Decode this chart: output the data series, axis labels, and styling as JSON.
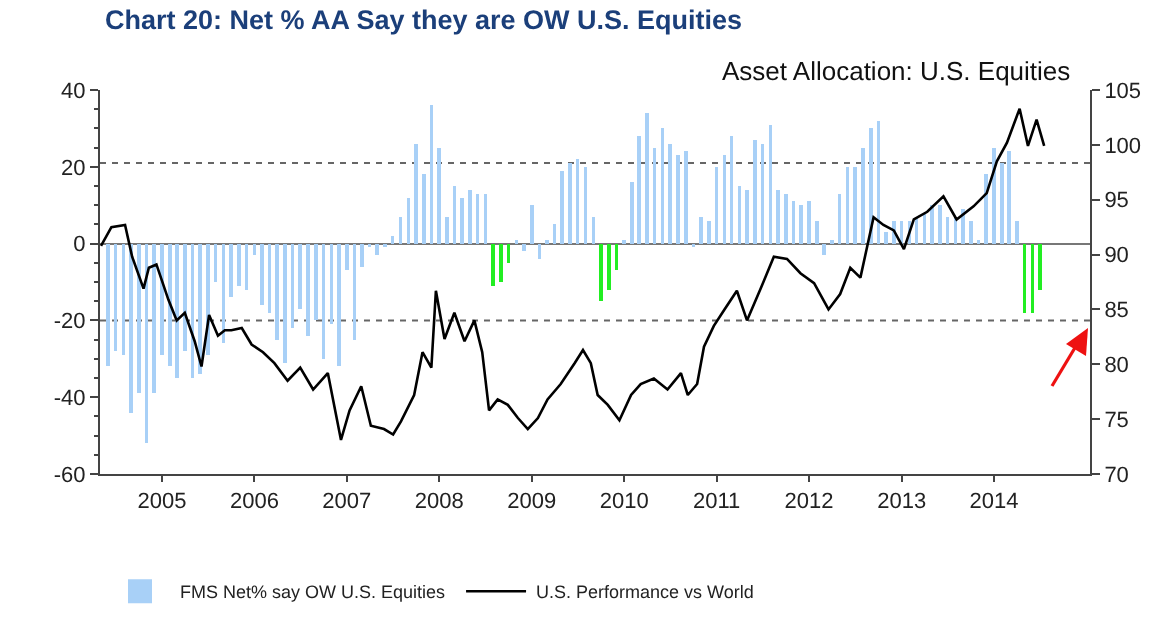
{
  "chart_data": {
    "type": "bar",
    "title": "Chart 20: Net % AA Say they are OW U.S. Equities",
    "subtitle": "Asset Allocation: U.S. Equities",
    "x": [
      "2004-06",
      "2004-07",
      "2004-08",
      "2004-09",
      "2004-10",
      "2004-11",
      "2004-12",
      "2005-01",
      "2005-02",
      "2005-03",
      "2005-04",
      "2005-05",
      "2005-06",
      "2005-07",
      "2005-08",
      "2005-09",
      "2005-10",
      "2005-11",
      "2005-12",
      "2006-01",
      "2006-02",
      "2006-03",
      "2006-04",
      "2006-05",
      "2006-06",
      "2006-07",
      "2006-08",
      "2006-09",
      "2006-10",
      "2006-11",
      "2006-12",
      "2007-01",
      "2007-02",
      "2007-03",
      "2007-04",
      "2007-05",
      "2007-06",
      "2007-07",
      "2007-08",
      "2007-09",
      "2007-10",
      "2007-11",
      "2007-12",
      "2008-01",
      "2008-02",
      "2008-03",
      "2008-04",
      "2008-05",
      "2008-06",
      "2008-07",
      "2008-08",
      "2008-09",
      "2008-10",
      "2008-11",
      "2008-12",
      "2009-01",
      "2009-02",
      "2009-03",
      "2009-04",
      "2009-05",
      "2009-06",
      "2009-07",
      "2009-08",
      "2009-09",
      "2009-10",
      "2009-11",
      "2009-12",
      "2010-01",
      "2010-02",
      "2010-03",
      "2010-04",
      "2010-05",
      "2010-06",
      "2010-07",
      "2010-08",
      "2010-09",
      "2010-10",
      "2010-11",
      "2010-12",
      "2011-01",
      "2011-02",
      "2011-03",
      "2011-04",
      "2011-05",
      "2011-06",
      "2011-07",
      "2011-08",
      "2011-09",
      "2011-10",
      "2011-11",
      "2011-12",
      "2012-01",
      "2012-02",
      "2012-03",
      "2012-04",
      "2012-05",
      "2012-06",
      "2012-07",
      "2012-08",
      "2012-09",
      "2012-10",
      "2012-11",
      "2012-12",
      "2013-01",
      "2013-02",
      "2013-03",
      "2013-04",
      "2013-05",
      "2013-06",
      "2013-07",
      "2013-08",
      "2013-09",
      "2013-10",
      "2013-11",
      "2013-12",
      "2014-01",
      "2014-02",
      "2014-03",
      "2014-04"
    ],
    "series": [
      {
        "name": "FMS Net% say OW U.S. Equities",
        "color": "#a8d0f7",
        "values": [
          -32,
          -28,
          -29,
          -44,
          -39,
          -52,
          -39,
          -29,
          -32,
          -35,
          -28,
          -35,
          -34,
          -29,
          -10,
          -26,
          -14,
          -11,
          -12,
          -3,
          -16,
          -18,
          -25,
          -31,
          -22,
          -17,
          -24,
          -20,
          -30,
          -21,
          -32,
          -7,
          -25,
          -6,
          -1,
          -3,
          -1,
          2,
          7,
          12,
          26,
          18,
          36,
          25,
          7,
          15,
          12,
          14,
          13,
          13,
          null,
          null,
          null,
          1,
          -2,
          10,
          -4,
          1,
          5,
          19,
          21,
          22,
          20,
          7,
          null,
          null,
          null,
          1,
          16,
          28,
          34,
          25,
          30,
          26,
          23,
          24,
          -1,
          7,
          6,
          20,
          23,
          28,
          15,
          14,
          27,
          26,
          31,
          14,
          13,
          11,
          10,
          11,
          6,
          -3,
          1,
          13,
          20,
          20,
          25,
          30,
          32,
          3,
          6,
          6,
          6,
          7,
          8,
          10,
          10,
          7,
          7,
          9,
          6,
          1,
          18,
          25,
          21,
          24,
          6
        ]
      },
      {
        "color": "#22ee22",
        "x": [
          "2008-08",
          "2008-09",
          "2008-10",
          "2009-10",
          "2009-11",
          "2009-12",
          "2014-05",
          "2014-06",
          "2014-07"
        ],
        "values": [
          -11,
          -10,
          -5,
          -15,
          -12,
          -7,
          -18,
          -18,
          -12
        ]
      },
      {
        "name": "U.S. Performance vs World",
        "type": "line",
        "axis": "y2",
        "color": "#000000",
        "x": [
          "2004-05-05",
          "2004-06-15",
          "2004-08-08",
          "2004-09-05",
          "2004-10-20",
          "2004-11-10",
          "2004-12-10",
          "2005-01-26",
          "2005-02-28",
          "2005-04-01",
          "2005-05-10",
          "2005-06-06",
          "2005-07-06",
          "2005-08-10",
          "2005-09-06",
          "2005-10-02",
          "2005-11-12",
          "2005-12-21",
          "2006-02-04",
          "2006-03-21",
          "2006-05-12",
          "2006-07-01",
          "2006-08-21",
          "2006-10-18",
          "2006-12-09",
          "2007-01-12",
          "2007-02-27",
          "2007-04-06",
          "2007-05-28",
          "2007-07-03",
          "2007-08-03",
          "2007-09-24",
          "2007-10-27",
          "2007-12-01",
          "2007-12-19",
          "2008-01-22",
          "2008-03-01",
          "2008-04-10",
          "2008-05-19",
          "2008-06-19",
          "2008-07-16",
          "2008-08-19",
          "2008-09-28",
          "2008-11-07",
          "2008-12-16",
          "2009-01-25",
          "2009-03-04",
          "2009-04-25",
          "2009-06-19",
          "2009-07-22",
          "2009-08-22",
          "2009-09-18",
          "2009-10-28",
          "2009-12-13",
          "2010-01-28",
          "2010-03-07",
          "2010-04-28",
          "2010-06-21",
          "2010-08-13",
          "2010-09-09",
          "2010-10-16",
          "2010-11-12",
          "2010-12-21",
          "2011-02-01",
          "2011-03-22",
          "2011-05-01",
          "2011-06-24",
          "2011-08-15",
          "2011-10-06",
          "2011-11-28",
          "2012-01-21",
          "2012-03-18",
          "2012-05-03",
          "2012-06-12",
          "2012-07-22",
          "2012-09-12",
          "2012-10-21",
          "2012-12-01",
          "2013-01-10",
          "2013-02-18",
          "2013-04-12",
          "2013-06-15",
          "2013-08-06",
          "2013-10-12",
          "2013-12-03",
          "2014-01-12",
          "2014-02-21",
          "2014-04-12",
          "2014-05-15",
          "2014-06-18",
          "2014-07-18"
        ],
        "values": [
          90.8,
          92.5,
          92.7,
          89.8,
          86.9,
          88.8,
          89.1,
          85.9,
          84.0,
          84.7,
          82.1,
          79.8,
          84.5,
          82.6,
          83.1,
          83.1,
          83.3,
          81.8,
          81.1,
          80.1,
          78.5,
          79.7,
          77.7,
          79.2,
          73.1,
          75.8,
          78.0,
          74.4,
          74.1,
          73.6,
          74.8,
          77.2,
          81.1,
          79.7,
          86.7,
          82.3,
          84.7,
          82.1,
          84.0,
          81.1,
          75.8,
          76.8,
          76.3,
          75.1,
          74.1,
          75.1,
          76.8,
          78.2,
          80.1,
          81.3,
          80.1,
          77.2,
          76.3,
          74.9,
          77.2,
          78.2,
          78.7,
          77.7,
          79.2,
          77.2,
          78.2,
          81.6,
          83.5,
          85.0,
          86.7,
          84.0,
          86.9,
          89.8,
          89.6,
          88.3,
          87.4,
          85.0,
          86.4,
          88.8,
          87.9,
          93.4,
          92.7,
          92.2,
          90.5,
          93.2,
          93.9,
          95.3,
          93.2,
          94.4,
          95.6,
          98.5,
          100.2,
          103.3,
          99.9,
          102.3,
          99.9
        ]
      }
    ],
    "xlim": [
      "2004-05-01",
      "2015-01-15"
    ],
    "xticks": [
      "2005",
      "2006",
      "2007",
      "2008",
      "2009",
      "2010",
      "2011",
      "2012",
      "2013",
      "2014"
    ],
    "ylim": [
      -60,
      40
    ],
    "yticks": [
      -60,
      -40,
      -20,
      0,
      20,
      40
    ],
    "y2lim": [
      70,
      105
    ],
    "y2ticks": [
      70,
      75,
      80,
      85,
      90,
      95,
      100,
      105
    ],
    "ref_lines": [
      {
        "axis": "y",
        "value": 21,
        "color": "#666666",
        "line_style": "dotted"
      },
      {
        "axis": "y",
        "value": -20,
        "color": "#666666",
        "line_style": "dotted"
      }
    ],
    "grid": false,
    "legend": "bottom left"
  }
}
